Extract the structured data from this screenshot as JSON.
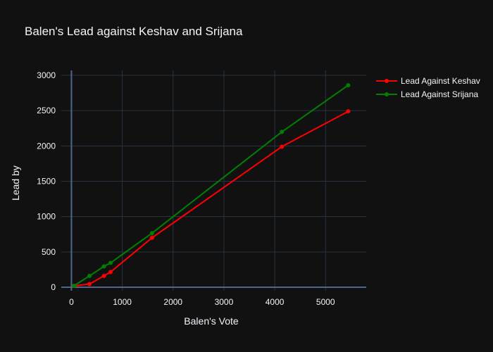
{
  "chart_data": {
    "type": "line",
    "title": "Balen's Lead against Keshav and Srijana",
    "xlabel": "Balen's Vote",
    "ylabel": "Lead by",
    "xlim": [
      -200,
      5800
    ],
    "ylim": [
      -50,
      3070
    ],
    "xticks": [
      0,
      1000,
      2000,
      3000,
      4000,
      5000
    ],
    "yticks": [
      0,
      500,
      1000,
      1500,
      2000,
      2500,
      3000
    ],
    "grid": true,
    "legend_position": "top-right",
    "colors": {
      "background": "#111111",
      "grid": "#283442",
      "zeroline": "#506784",
      "text": "#f2f5fa"
    },
    "series": [
      {
        "name": "Lead Against Keshav",
        "color": "#ff0000",
        "x": [
          50,
          355,
          640,
          770,
          1585,
          4140,
          5445
        ],
        "y": [
          20,
          45,
          160,
          215,
          700,
          1990,
          2490
        ]
      },
      {
        "name": "Lead Against Srijana",
        "color": "#008000",
        "x": [
          50,
          355,
          640,
          770,
          1585,
          4140,
          5445
        ],
        "y": [
          20,
          160,
          295,
          345,
          765,
          2200,
          2860
        ]
      }
    ]
  }
}
